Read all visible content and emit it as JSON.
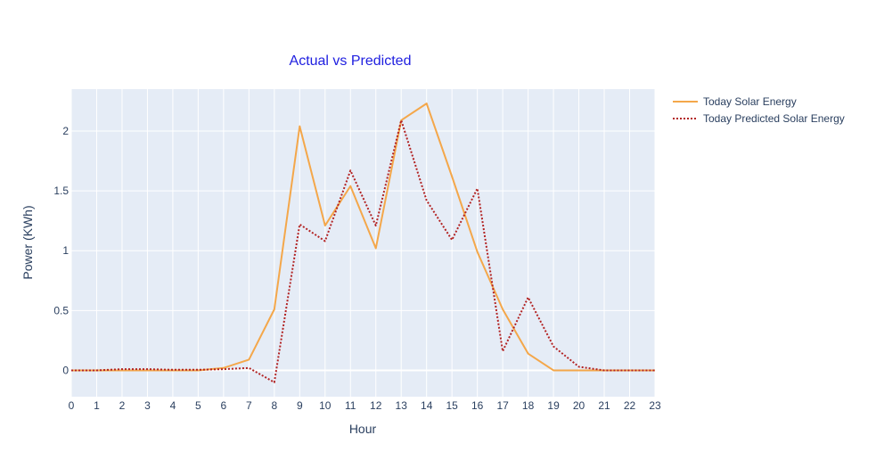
{
  "chart_data": {
    "type": "line",
    "title": "Actual vs Predicted",
    "xlabel": "Hour",
    "ylabel": "Power (KWh)",
    "xlim": [
      0,
      23
    ],
    "ylim": [
      -0.22,
      2.35
    ],
    "x_ticks": [
      "0",
      "1",
      "2",
      "3",
      "4",
      "5",
      "6",
      "7",
      "8",
      "9",
      "10",
      "11",
      "12",
      "13",
      "14",
      "15",
      "16",
      "17",
      "18",
      "19",
      "20",
      "21",
      "22",
      "23"
    ],
    "y_ticks": [
      {
        "value": 0,
        "label": "0"
      },
      {
        "value": 0.5,
        "label": "0.5"
      },
      {
        "value": 1,
        "label": "1"
      },
      {
        "value": 1.5,
        "label": "1.5"
      },
      {
        "value": 2,
        "label": "2"
      }
    ],
    "grid": true,
    "legend_position": "top-right, outside plot",
    "x": [
      0,
      1,
      2,
      3,
      4,
      5,
      6,
      7,
      8,
      9,
      10,
      11,
      12,
      13,
      14,
      15,
      16,
      17,
      18,
      19,
      20,
      21,
      22,
      23
    ],
    "series": [
      {
        "name": "Today Solar Energy",
        "style": "solid",
        "color": "#f4a74a",
        "values": [
          0,
          0,
          0,
          0,
          0,
          0,
          0.02,
          0.09,
          0.51,
          2.04,
          1.21,
          1.54,
          1.02,
          2.09,
          2.23,
          1.62,
          0.99,
          0.51,
          0.14,
          0,
          0,
          0,
          0,
          0
        ]
      },
      {
        "name": "Today Predicted Solar Energy",
        "style": "dotted",
        "color": "#b22222",
        "values": [
          0,
          0,
          0.01,
          0.01,
          0.005,
          0.005,
          0.01,
          0.02,
          -0.1,
          1.22,
          1.08,
          1.67,
          1.21,
          2.09,
          1.42,
          1.09,
          1.52,
          0.16,
          0.61,
          0.2,
          0.03,
          0,
          0,
          0
        ]
      }
    ],
    "colors": {
      "plot_background": "#e5ecf6",
      "grid": "#ffffff",
      "text": "#2a3f5f",
      "title": "#2020e0"
    }
  }
}
